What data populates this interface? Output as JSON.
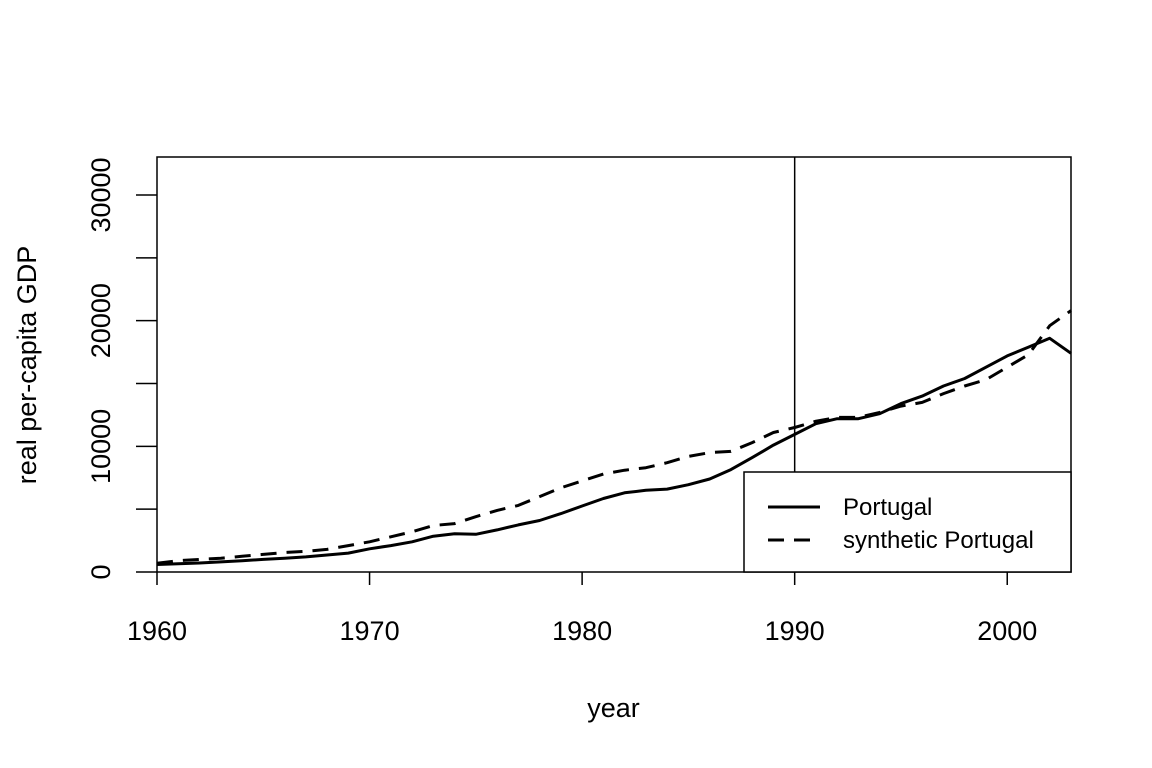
{
  "chart_data": {
    "type": "line",
    "title": "",
    "xlabel": "year",
    "ylabel": "real per-capita GDP",
    "xlim": [
      1960,
      2003
    ],
    "ylim": [
      0,
      33000
    ],
    "x_ticks": [
      1960,
      1970,
      1980,
      1990,
      2000
    ],
    "x_tick_labels": [
      "1960",
      "1970",
      "1980",
      "1990",
      "2000"
    ],
    "y_ticks": [
      0,
      5000,
      10000,
      15000,
      20000,
      25000,
      30000
    ],
    "y_tick_labels": [
      "0",
      "",
      "10000",
      "",
      "20000",
      "",
      "30000"
    ],
    "vline_x": 1990,
    "grid": false,
    "legend_position": "bottom-right",
    "x": [
      1960,
      1961,
      1962,
      1963,
      1964,
      1965,
      1966,
      1967,
      1968,
      1969,
      1970,
      1971,
      1972,
      1973,
      1974,
      1975,
      1976,
      1977,
      1978,
      1979,
      1980,
      1981,
      1982,
      1983,
      1984,
      1985,
      1986,
      1987,
      1988,
      1989,
      1990,
      1991,
      1992,
      1993,
      1994,
      1995,
      1996,
      1997,
      1998,
      1999,
      2000,
      2001,
      2002,
      2003
    ],
    "series": [
      {
        "name": "Portugal",
        "style": "solid",
        "values": [
          600,
          650,
          720,
          800,
          900,
          1000,
          1100,
          1200,
          1350,
          1500,
          1850,
          2100,
          2400,
          2850,
          3050,
          3000,
          3350,
          3750,
          4100,
          4650,
          5250,
          5850,
          6300,
          6500,
          6600,
          6950,
          7400,
          8150,
          9100,
          10100,
          10950,
          11800,
          12200,
          12200,
          12600,
          13400,
          14000,
          14800,
          15400,
          16300,
          17200,
          17900,
          18600,
          17400
        ],
        "color": "#000000"
      },
      {
        "name": "synthetic Portugal",
        "style": "dashed",
        "values": [
          700,
          900,
          1000,
          1100,
          1250,
          1400,
          1550,
          1650,
          1800,
          2100,
          2400,
          2800,
          3200,
          3700,
          3850,
          4400,
          4900,
          5300,
          6000,
          6700,
          7250,
          7800,
          8100,
          8300,
          8700,
          9200,
          9500,
          9600,
          10300,
          11100,
          11500,
          12000,
          12300,
          12300,
          12700,
          13200,
          13500,
          14200,
          14800,
          15300,
          16300,
          17300,
          19600,
          20800
        ],
        "color": "#000000"
      }
    ]
  }
}
